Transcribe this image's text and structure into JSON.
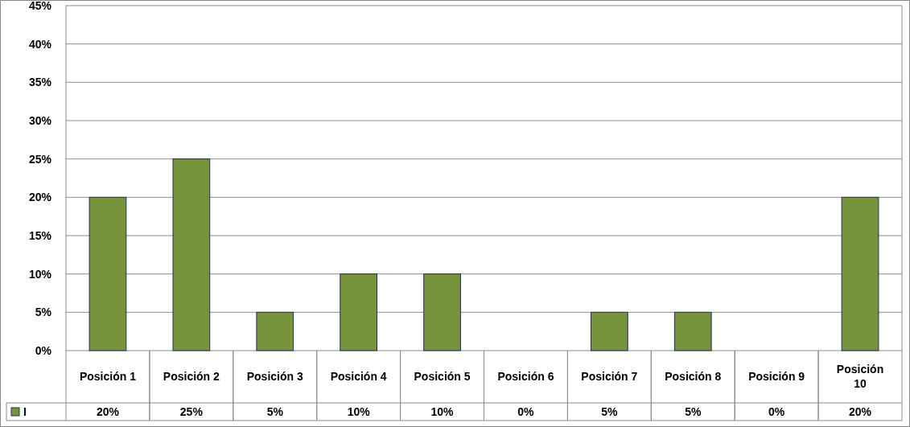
{
  "chart_data": {
    "type": "bar",
    "categories": [
      "Posición 1",
      "Posición 2",
      "Posición 3",
      "Posición 4",
      "Posición 5",
      "Posición 6",
      "Posición 7",
      "Posición 8",
      "Posición 9",
      "Posición 10"
    ],
    "series": [
      {
        "name": "I",
        "color": "#77933c",
        "values": [
          20,
          25,
          5,
          10,
          10,
          0,
          5,
          5,
          0,
          20
        ],
        "value_labels": [
          "20%",
          "25%",
          "5%",
          "10%",
          "10%",
          "0%",
          "5%",
          "5%",
          "0%",
          "20%"
        ]
      }
    ],
    "ylim": [
      0,
      45
    ],
    "yticks": [
      {
        "value": 0,
        "label": "0%"
      },
      {
        "value": 5,
        "label": "5%"
      },
      {
        "value": 10,
        "label": "10%"
      },
      {
        "value": 15,
        "label": "15%"
      },
      {
        "value": 20,
        "label": "20%"
      },
      {
        "value": 25,
        "label": "25%"
      },
      {
        "value": 30,
        "label": "30%"
      },
      {
        "value": 35,
        "label": "35%"
      },
      {
        "value": 40,
        "label": "40%"
      },
      {
        "value": 45,
        "label": "45%"
      }
    ],
    "grid": "y",
    "legend": "bottom"
  }
}
